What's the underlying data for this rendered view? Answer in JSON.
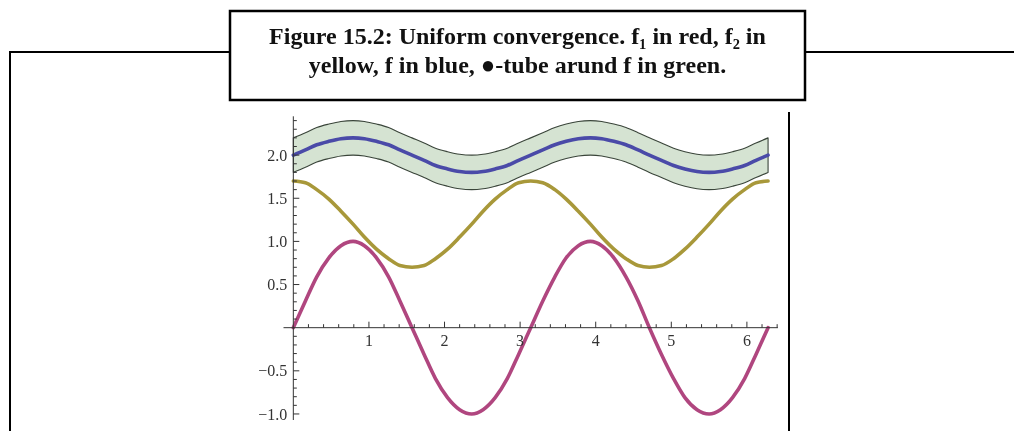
{
  "chart_data": {
    "type": "line",
    "title": "Figure 15.2: Uniform convergence. f₁ in red, f₂ in yellow, f in blue, ●-tube arund f in green.",
    "x": [
      0,
      0.16,
      0.31,
      0.47,
      0.63,
      0.79,
      0.94,
      1.1,
      1.26,
      1.41,
      1.57,
      1.73,
      1.88,
      2.04,
      2.2,
      2.36,
      2.51,
      2.67,
      2.83,
      2.98,
      3.14,
      3.3,
      3.46,
      3.61,
      3.77,
      3.93,
      4.08,
      4.24,
      4.4,
      4.56,
      4.71,
      4.87,
      5.03,
      5.18,
      5.34,
      5.5,
      5.65,
      5.81,
      5.97,
      6.12,
      6.28
    ],
    "series": [
      {
        "color": "#b0467f",
        "values": [
          0,
          0.31,
          0.59,
          0.81,
          0.95,
          1,
          0.95,
          0.81,
          0.59,
          0.31,
          0,
          -0.31,
          -0.59,
          -0.81,
          -0.95,
          -1,
          -0.95,
          -0.81,
          -0.59,
          -0.31,
          0,
          0.31,
          0.59,
          0.81,
          0.95,
          1,
          0.95,
          0.81,
          0.59,
          0.31,
          0,
          -0.31,
          -0.59,
          -0.81,
          -0.95,
          -1,
          -0.95,
          -0.81,
          -0.59,
          -0.31,
          0
        ]
      },
      {
        "color": "#a8983a",
        "values": [
          1.7,
          1.68,
          1.6,
          1.49,
          1.35,
          1.2,
          1.05,
          0.91,
          0.8,
          0.72,
          0.7,
          0.72,
          0.8,
          0.91,
          1.05,
          1.2,
          1.35,
          1.49,
          1.6,
          1.68,
          1.7,
          1.68,
          1.6,
          1.49,
          1.35,
          1.2,
          1.05,
          0.91,
          0.8,
          0.72,
          0.7,
          0.72,
          0.8,
          0.91,
          1.05,
          1.2,
          1.35,
          1.49,
          1.6,
          1.68,
          1.7
        ]
      },
      {
        "color": "#4a4aa8",
        "values": [
          2,
          2.06,
          2.12,
          2.16,
          2.19,
          2.2,
          2.19,
          2.16,
          2.12,
          2.06,
          2,
          1.94,
          1.88,
          1.84,
          1.81,
          1.8,
          1.81,
          1.84,
          1.88,
          1.94,
          2,
          2.06,
          2.12,
          2.16,
          2.19,
          2.2,
          2.19,
          2.16,
          2.12,
          2.06,
          2,
          1.94,
          1.88,
          1.84,
          1.81,
          1.8,
          1.81,
          1.84,
          1.88,
          1.94,
          2
        ],
        "lower": [
          1.8,
          1.86,
          1.92,
          1.96,
          1.99,
          2,
          1.99,
          1.96,
          1.92,
          1.86,
          1.8,
          1.74,
          1.68,
          1.64,
          1.61,
          1.6,
          1.61,
          1.64,
          1.68,
          1.74,
          1.8,
          1.86,
          1.92,
          1.96,
          1.99,
          2,
          1.99,
          1.96,
          1.92,
          1.86,
          1.8,
          1.74,
          1.68,
          1.64,
          1.61,
          1.6,
          1.61,
          1.64,
          1.68,
          1.74,
          1.8
        ],
        "upper": [
          2.2,
          2.26,
          2.32,
          2.36,
          2.39,
          2.4,
          2.39,
          2.36,
          2.32,
          2.26,
          2.2,
          2.14,
          2.08,
          2.04,
          2.01,
          2,
          2.01,
          2.04,
          2.08,
          2.14,
          2.2,
          2.26,
          2.32,
          2.36,
          2.39,
          2.4,
          2.39,
          2.36,
          2.32,
          2.26,
          2.2,
          2.14,
          2.08,
          2.04,
          2.01,
          2,
          2.01,
          2.04,
          2.08,
          2.14,
          2.2
        ]
      }
    ],
    "xlim": [
      -0.13,
      6.41
    ],
    "xticks": [
      {
        "value": 0.2,
        "label": null
      },
      {
        "value": 0.4,
        "label": null
      },
      {
        "value": 0.6,
        "label": null
      },
      {
        "value": 0.8,
        "label": null
      },
      1,
      {
        "value": 1.2,
        "label": null
      },
      {
        "value": 1.4,
        "label": null
      },
      {
        "value": 1.6,
        "label": null
      },
      {
        "value": 1.8,
        "label": null
      },
      2,
      {
        "value": 2.2,
        "label": null
      },
      {
        "value": 2.4,
        "label": null
      },
      {
        "value": 2.6,
        "label": null
      },
      {
        "value": 2.8,
        "label": null
      },
      3,
      {
        "value": 3.2,
        "label": null
      },
      {
        "value": 3.4,
        "label": null
      },
      {
        "value": 3.6,
        "label": null
      },
      {
        "value": 3.8,
        "label": null
      },
      4,
      {
        "value": 4.2,
        "label": null
      },
      {
        "value": 4.4,
        "label": null
      },
      {
        "value": 4.6,
        "label": null
      },
      {
        "value": 4.8,
        "label": null
      },
      5,
      {
        "value": 5.2,
        "label": null
      },
      {
        "value": 5.4,
        "label": null
      },
      {
        "value": 5.6,
        "label": null
      },
      {
        "value": 5.8,
        "label": null
      },
      6,
      {
        "value": 6.2,
        "label": null
      },
      {
        "value": 6.4,
        "label": null
      }
    ],
    "ylim": [
      -1.07,
      2.45
    ],
    "yticks": [
      {
        "value": -1,
        "label": "−1.0"
      },
      {
        "value": -0.9,
        "label": null
      },
      {
        "value": -0.8,
        "label": null
      },
      {
        "value": -0.7,
        "label": null
      },
      {
        "value": -0.6,
        "label": null
      },
      {
        "value": -0.5,
        "label": "−0.5"
      },
      {
        "value": -0.4,
        "label": null
      },
      {
        "value": -0.3,
        "label": null
      },
      {
        "value": -0.2,
        "label": null
      },
      {
        "value": -0.1,
        "label": null
      },
      {
        "value": 0.1,
        "label": null
      },
      {
        "value": 0.2,
        "label": null
      },
      {
        "value": 0.3,
        "label": null
      },
      {
        "value": 0.4,
        "label": null
      },
      {
        "value": 0.5,
        "label": "0.5"
      },
      {
        "value": 0.6,
        "label": null
      },
      {
        "value": 0.7,
        "label": null
      },
      {
        "value": 0.8,
        "label": null
      },
      {
        "value": 0.9,
        "label": null
      },
      {
        "value": 1,
        "label": "1.0"
      },
      {
        "value": 1.1,
        "label": null
      },
      {
        "value": 1.2,
        "label": null
      },
      {
        "value": 1.3,
        "label": null
      },
      {
        "value": 1.4,
        "label": null
      },
      {
        "value": 1.5,
        "label": "1.5"
      },
      {
        "value": 1.6,
        "label": null
      },
      {
        "value": 1.7,
        "label": null
      },
      {
        "value": 1.8,
        "label": null
      },
      {
        "value": 1.9,
        "label": null
      },
      {
        "value": 2,
        "label": "2.0"
      },
      {
        "value": 2.1,
        "label": null
      },
      {
        "value": 2.2,
        "label": null
      },
      {
        "value": 2.3,
        "label": null
      },
      {
        "value": 2.4,
        "label": null
      }
    ]
  }
}
